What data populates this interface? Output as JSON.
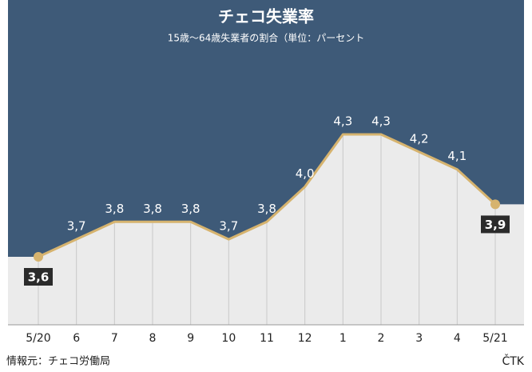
{
  "chart_data": {
    "type": "line",
    "title": "チェコ失業率",
    "subtitle": "15歳〜64歳失業者の割合（単位：パーセント",
    "categories": [
      "5/20",
      "6",
      "7",
      "8",
      "9",
      "10",
      "11",
      "12",
      "1",
      "2",
      "3",
      "4",
      "5/21"
    ],
    "values": [
      3.6,
      3.7,
      3.8,
      3.8,
      3.8,
      3.7,
      3.8,
      4.0,
      4.3,
      4.3,
      4.2,
      4.1,
      3.9
    ],
    "value_labels": [
      "3,6",
      "3,7",
      "3,8",
      "3,8",
      "3,8",
      "3,7",
      "3,8",
      "4,0",
      "4,3",
      "4,3",
      "4,2",
      "4,1",
      "3,9"
    ],
    "color": "#d6b36e",
    "source": "情報元：チェコ労働局",
    "credit": "ČTK"
  }
}
